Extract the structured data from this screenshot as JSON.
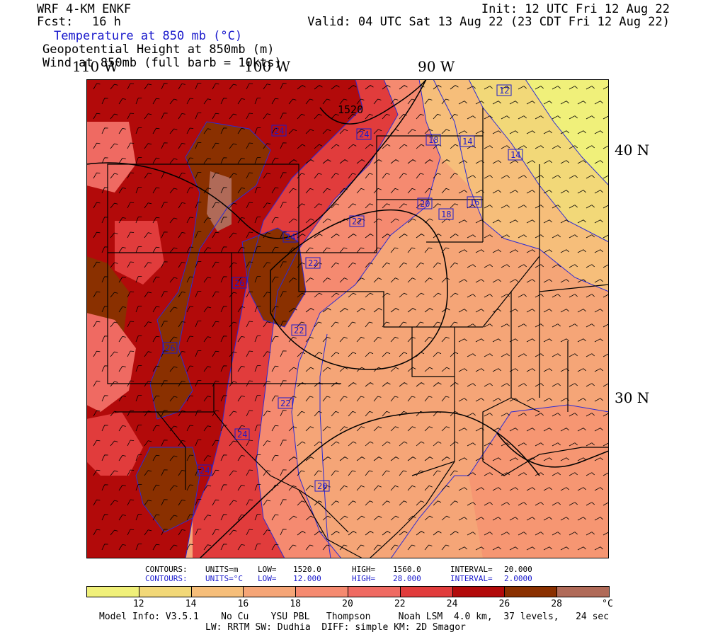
{
  "header": {
    "model": "WRF 4-KM ENKF",
    "fcst_label": "Fcst:",
    "fcst_value": "16 h",
    "init": "Init: 12 UTC Fri 12 Aug 22",
    "valid": "Valid: 04 UTC Sat 13 Aug 22 (23 CDT Fri 12 Aug 22)",
    "field1": "Temperature at 850 mb (°C)",
    "field2": "Geopotential Height at 850mb (m)",
    "field3": "Wind at 850mb (full barb = 10kts)"
  },
  "axes": {
    "lon_labels": [
      "110 W",
      "100 W",
      "90 W"
    ],
    "lat_labels": [
      "40 N",
      "30 N"
    ]
  },
  "map": {
    "height_contour_label": "1520",
    "temp_contour_labels": [
      "24",
      "24",
      "18",
      "14",
      "14",
      "12",
      "20",
      "18",
      "16",
      "22",
      "24",
      "22",
      "26",
      "22",
      "26",
      "22",
      "24",
      "24",
      "20"
    ],
    "icon": "wind-barb-icon"
  },
  "contours_info": {
    "row1": {
      "label": "CONTOURS:",
      "units": "UNITS=m",
      "low_label": "LOW=",
      "low": "1520.0",
      "high_label": "HIGH=",
      "high": "1560.0",
      "interval_label": "INTERVAL=",
      "interval": "20.000"
    },
    "row2": {
      "label": "CONTOURS:",
      "units": "UNITS=°C",
      "low_label": "LOW=",
      "low": "12.000",
      "high_label": "HIGH=",
      "high": "28.000",
      "interval_label": "INTERVAL=",
      "interval": "2.0000"
    }
  },
  "legend": {
    "ticks": [
      "12",
      "14",
      "16",
      "18",
      "20",
      "22",
      "24",
      "26",
      "28"
    ],
    "unit": "°C",
    "colors": [
      "#f0f07a",
      "#f2d878",
      "#f6be7a",
      "#f5a577",
      "#f58a70",
      "#ef6a62",
      "#e13c3c",
      "#b20a0a",
      "#8a3000",
      "#b06a58"
    ]
  },
  "footer": {
    "line1": "Model Info: V3.5.1    No Cu    YSU PBL   Thompson     Noah LSM  4.0 km,  37 levels,   24 sec",
    "line2": "LW: RRTM SW: Dudhia  DIFF: simple KM: 2D Smagor"
  }
}
